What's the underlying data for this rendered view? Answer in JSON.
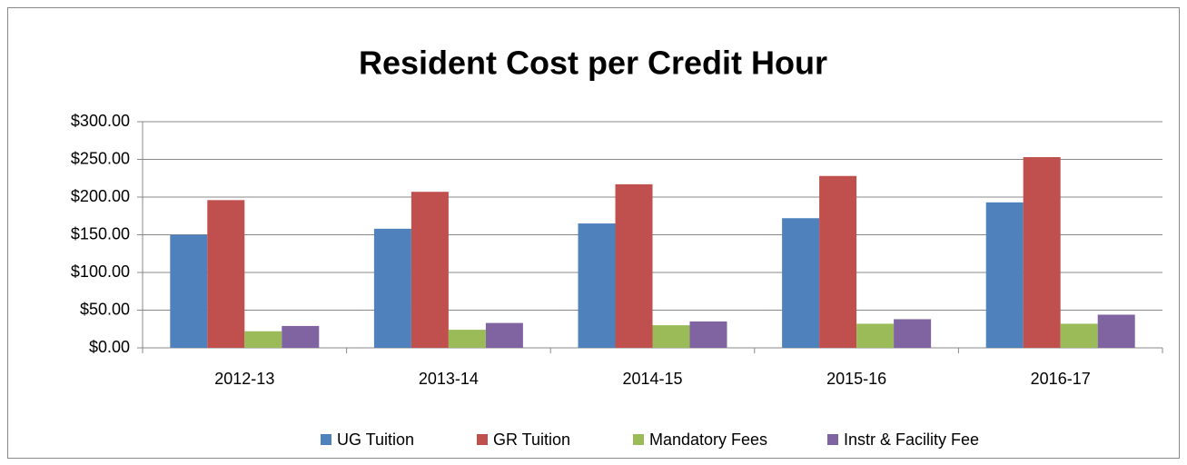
{
  "chart_data": {
    "type": "bar",
    "title": "Resident Cost per Credit Hour",
    "categories": [
      "2012-13",
      "2013-14",
      "2014-15",
      "2015-16",
      "2016-17"
    ],
    "series": [
      {
        "name": "UG Tuition",
        "color": "#4f81bd",
        "values": [
          150,
          158,
          165,
          172,
          193
        ]
      },
      {
        "name": "GR Tuition",
        "color": "#c0504d",
        "values": [
          196,
          207,
          217,
          228,
          253
        ]
      },
      {
        "name": "Mandatory Fees",
        "color": "#9bbb59",
        "values": [
          22,
          24,
          30,
          32,
          32
        ]
      },
      {
        "name": "Instr & Facility Fee",
        "color": "#8064a2",
        "values": [
          29,
          33,
          35,
          38,
          44
        ]
      }
    ],
    "ylim": [
      0,
      300
    ],
    "yticks": [
      {
        "value": 0,
        "label": "$0.00"
      },
      {
        "value": 50,
        "label": "$50.00"
      },
      {
        "value": 100,
        "label": "$100.00"
      },
      {
        "value": 150,
        "label": "$150.00"
      },
      {
        "value": 200,
        "label": "$200.00"
      },
      {
        "value": 250,
        "label": "$250.00"
      },
      {
        "value": 300,
        "label": "$300.00"
      }
    ],
    "grid": true,
    "legend": "bottom"
  }
}
